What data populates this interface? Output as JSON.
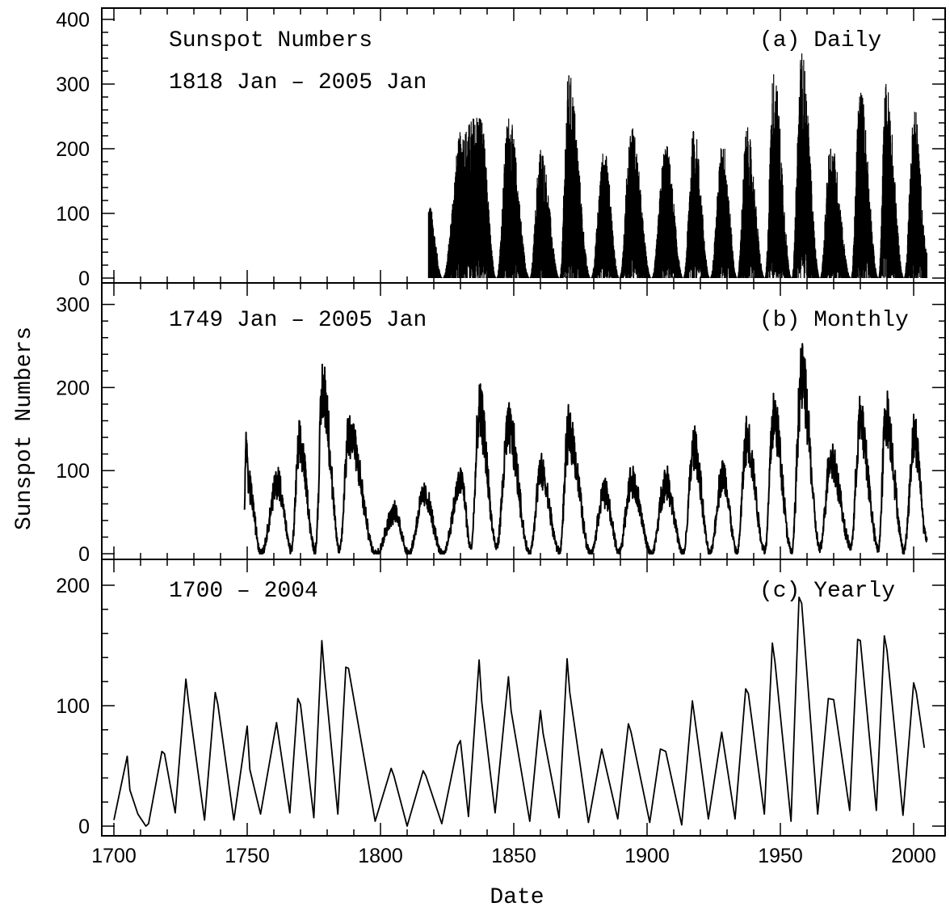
{
  "chart_data": {
    "type": "line",
    "xlabel": "Date",
    "ylabel": "Sunspot Numbers",
    "xlim": [
      1700,
      2006
    ],
    "x_ticks": [
      "1700",
      "1750",
      "1800",
      "1850",
      "1900",
      "1950",
      "2000"
    ],
    "grid": false,
    "panels": [
      {
        "id": "daily",
        "title": "Sunspot Numbers",
        "range_label": "1818 Jan – 2005 Jan",
        "tag": "(a) Daily",
        "ylim": [
          0,
          420
        ],
        "y_ticks": [
          "0",
          "100",
          "200",
          "300",
          "400"
        ],
        "series": {
          "style": "dense",
          "peak_points": [
            [
              1818.0,
              120
            ],
            [
              1823.3,
              0
            ],
            [
              1830.4,
              230
            ],
            [
              1837.2,
              260
            ],
            [
              1843.5,
              0
            ],
            [
              1848.1,
              255
            ],
            [
              1856.0,
              0
            ],
            [
              1860.1,
              205
            ],
            [
              1867.2,
              0
            ],
            [
              1870.6,
              320
            ],
            [
              1878.9,
              0
            ],
            [
              1883.9,
              200
            ],
            [
              1889.6,
              0
            ],
            [
              1894.1,
              240
            ],
            [
              1901.7,
              0
            ],
            [
              1907.0,
              210
            ],
            [
              1913.6,
              0
            ],
            [
              1917.6,
              235
            ],
            [
              1923.6,
              0
            ],
            [
              1928.4,
              215
            ],
            [
              1933.8,
              0
            ],
            [
              1937.4,
              235
            ],
            [
              1944.2,
              0
            ],
            [
              1947.5,
              325
            ],
            [
              1954.3,
              0
            ],
            [
              1957.9,
              355
            ],
            [
              1964.9,
              0
            ],
            [
              1968.9,
              215
            ],
            [
              1976.5,
              0
            ],
            [
              1979.9,
              300
            ],
            [
              1986.8,
              0
            ],
            [
              1989.6,
              305
            ],
            [
              1996.4,
              0
            ],
            [
              2000.3,
              270
            ],
            [
              2005.0,
              45
            ]
          ]
        }
      },
      {
        "id": "monthly",
        "range_label": "1749 Jan – 2005 Jan",
        "tag": "(b) Monthly",
        "ylim": [
          0,
          310
        ],
        "y_ticks": [
          "0",
          "100",
          "200",
          "300"
        ],
        "series": {
          "style": "noisy",
          "peak_points": [
            [
              1749.0,
              58
            ],
            [
              1749.5,
              158
            ],
            [
              1750.5,
              100
            ],
            [
              1755.2,
              0
            ],
            [
              1761.5,
              105
            ],
            [
              1766.5,
              5
            ],
            [
              1769.7,
              158
            ],
            [
              1775.5,
              5
            ],
            [
              1778.4,
              238
            ],
            [
              1784.7,
              5
            ],
            [
              1788.1,
              175
            ],
            [
              1798.3,
              0
            ],
            [
              1805.2,
              60
            ],
            [
              1810.6,
              0
            ],
            [
              1816.4,
              85
            ],
            [
              1823.3,
              0
            ],
            [
              1830.4,
              105
            ],
            [
              1833.9,
              8
            ],
            [
              1837.2,
              205
            ],
            [
              1843.5,
              10
            ],
            [
              1848.1,
              180
            ],
            [
              1856.0,
              0
            ],
            [
              1860.1,
              118
            ],
            [
              1867.2,
              3
            ],
            [
              1870.6,
              176
            ],
            [
              1878.9,
              0
            ],
            [
              1883.9,
              90
            ],
            [
              1889.6,
              3
            ],
            [
              1894.1,
              105
            ],
            [
              1901.7,
              0
            ],
            [
              1907.0,
              105
            ],
            [
              1913.6,
              0
            ],
            [
              1917.6,
              155
            ],
            [
              1923.6,
              2
            ],
            [
              1928.4,
              115
            ],
            [
              1933.8,
              2
            ],
            [
              1937.4,
              165
            ],
            [
              1944.2,
              5
            ],
            [
              1947.5,
              200
            ],
            [
              1954.3,
              2
            ],
            [
              1957.9,
              255
            ],
            [
              1964.9,
              8
            ],
            [
              1968.9,
              140
            ],
            [
              1976.5,
              10
            ],
            [
              1979.9,
              188
            ],
            [
              1986.8,
              7
            ],
            [
              1989.6,
              200
            ],
            [
              1996.4,
              5
            ],
            [
              2000.3,
              170
            ],
            [
              2005.0,
              20
            ]
          ]
        }
      },
      {
        "id": "yearly",
        "range_label": "1700 – 2004",
        "tag": "(c) Yearly",
        "ylim": [
          -5,
          215
        ],
        "y_ticks": [
          "0",
          "100",
          "200"
        ],
        "series": {
          "style": "line",
          "points": [
            [
              1700,
              5
            ],
            [
              1705,
              58
            ],
            [
              1706,
              30
            ],
            [
              1709,
              10
            ],
            [
              1712,
              0
            ],
            [
              1713,
              2
            ],
            [
              1718,
              62
            ],
            [
              1719,
              60
            ],
            [
              1723,
              11
            ],
            [
              1727,
              122
            ],
            [
              1728,
              103
            ],
            [
              1734,
              5
            ],
            [
              1738,
              111
            ],
            [
              1739,
              101
            ],
            [
              1745,
              5
            ],
            [
              1750,
              83
            ],
            [
              1751,
              47
            ],
            [
              1755,
              10
            ],
            [
              1761,
              86
            ],
            [
              1766,
              11
            ],
            [
              1769,
              106
            ],
            [
              1770,
              101
            ],
            [
              1775,
              7
            ],
            [
              1778,
              154
            ],
            [
              1779,
              126
            ],
            [
              1784,
              10
            ],
            [
              1787,
              132
            ],
            [
              1788,
              131
            ],
            [
              1798,
              4
            ],
            [
              1804,
              48
            ],
            [
              1805,
              42
            ],
            [
              1810,
              0
            ],
            [
              1816,
              46
            ],
            [
              1817,
              42
            ],
            [
              1823,
              2
            ],
            [
              1829,
              67
            ],
            [
              1830,
              71
            ],
            [
              1833,
              8
            ],
            [
              1837,
              138
            ],
            [
              1838,
              103
            ],
            [
              1843,
              11
            ],
            [
              1848,
              124
            ],
            [
              1849,
              96
            ],
            [
              1856,
              4
            ],
            [
              1860,
              96
            ],
            [
              1861,
              77
            ],
            [
              1867,
              7
            ],
            [
              1870,
              139
            ],
            [
              1871,
              111
            ],
            [
              1878,
              3
            ],
            [
              1883,
              64
            ],
            [
              1889,
              6
            ],
            [
              1893,
              85
            ],
            [
              1894,
              78
            ],
            [
              1901,
              3
            ],
            [
              1905,
              64
            ],
            [
              1907,
              62
            ],
            [
              1913,
              1
            ],
            [
              1917,
              104
            ],
            [
              1923,
              6
            ],
            [
              1928,
              78
            ],
            [
              1933,
              6
            ],
            [
              1937,
              114
            ],
            [
              1938,
              110
            ],
            [
              1944,
              10
            ],
            [
              1947,
              152
            ],
            [
              1948,
              136
            ],
            [
              1954,
              4
            ],
            [
              1957,
              190
            ],
            [
              1958,
              185
            ],
            [
              1964,
              10
            ],
            [
              1968,
              106
            ],
            [
              1970,
              105
            ],
            [
              1976,
              13
            ],
            [
              1979,
              155
            ],
            [
              1980,
              154
            ],
            [
              1986,
              13
            ],
            [
              1989,
              158
            ],
            [
              1990,
              146
            ],
            [
              1996,
              9
            ],
            [
              2000,
              119
            ],
            [
              2001,
              111
            ],
            [
              2004,
              65
            ]
          ]
        }
      }
    ]
  }
}
